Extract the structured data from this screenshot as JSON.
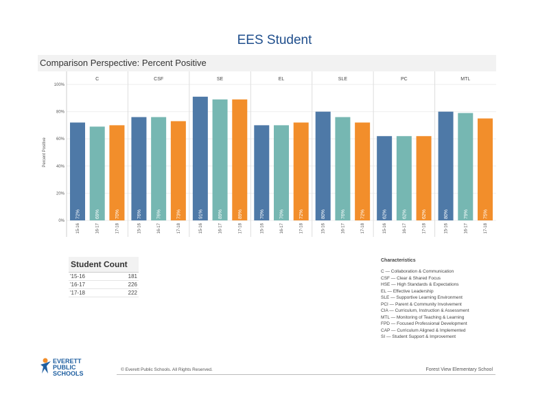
{
  "page_title": "EES Student",
  "section_title": "Comparison Perspective: Percent Positive",
  "chart_data": {
    "type": "bar",
    "ylabel": "Percent Positive",
    "ylim": [
      0,
      100
    ],
    "yticks": [
      "0%",
      "20%",
      "40%",
      "60%",
      "80%",
      "100%"
    ],
    "groups": [
      "C",
      "CSF",
      "SE",
      "EL",
      "SLE",
      "PC",
      "MTL"
    ],
    "categories": [
      "15-16",
      "16-17",
      "17-18"
    ],
    "series_colors": [
      "#4e79a7",
      "#76b7b2",
      "#f28e2b"
    ],
    "values": [
      [
        72,
        69,
        70
      ],
      [
        76,
        76,
        73
      ],
      [
        91,
        89,
        89
      ],
      [
        70,
        70,
        72
      ],
      [
        80,
        76,
        72
      ],
      [
        62,
        62,
        62
      ],
      [
        80,
        79,
        75
      ]
    ]
  },
  "student_count": {
    "title": "Student Count",
    "rows": [
      {
        "year": "'15-16",
        "count": "181"
      },
      {
        "year": "'16-17",
        "count": "226"
      },
      {
        "year": "'17-18",
        "count": "222"
      }
    ]
  },
  "characteristics": {
    "title": "Characteristics",
    "items": [
      "C — Collaboration & Communication",
      "CSF — Clear & Shared Focus",
      "HSE — High Standards & Expectations",
      "EL — Effective Leadership",
      "SLE — Supportive Learning Environment",
      "PCI — Parent & Community Involvement",
      "CIA — Curriculum, Instruction & Assessment",
      "MTL — Monitoring of Teaching & Learning",
      "FPD — Focused Professional Development",
      "CAP — Curriculum Aligned & Implemented",
      "SI — Student Support & Improvement"
    ]
  },
  "footer": {
    "logo_line1": "EVERETT",
    "logo_line2": "PUBLIC SCHOOLS",
    "copyright": "© Everett Public Schools. All Rights Reserved.",
    "school": "Forest View Elementary School"
  }
}
